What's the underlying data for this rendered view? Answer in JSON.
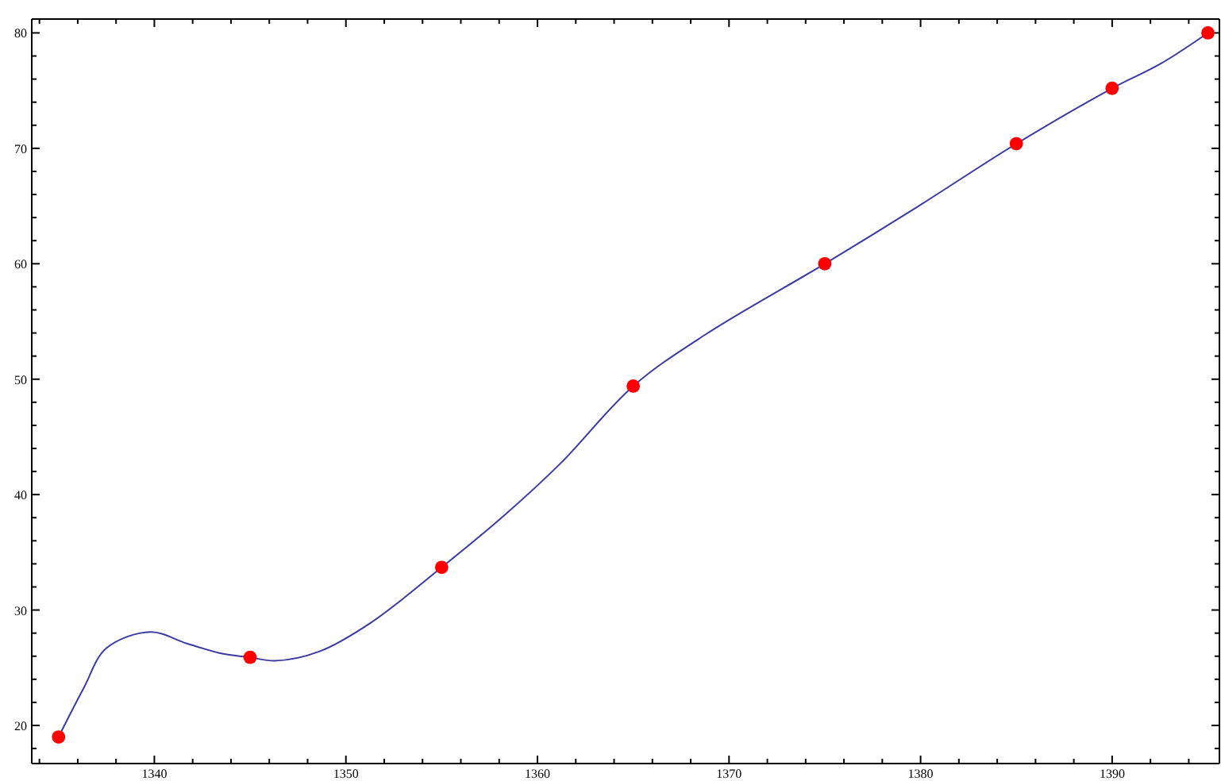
{
  "chart_data": {
    "type": "line",
    "xlim": [
      1333.6,
      1395.6
    ],
    "ylim": [
      16.7,
      81.2
    ],
    "xticks": [
      {
        "value": 1334,
        "label": null
      },
      {
        "value": 1336,
        "label": null
      },
      {
        "value": 1338,
        "label": null
      },
      1340,
      {
        "value": 1342,
        "label": null
      },
      {
        "value": 1344,
        "label": null
      },
      {
        "value": 1346,
        "label": null
      },
      {
        "value": 1348,
        "label": null
      },
      1350,
      {
        "value": 1352,
        "label": null
      },
      {
        "value": 1354,
        "label": null
      },
      {
        "value": 1356,
        "label": null
      },
      {
        "value": 1358,
        "label": null
      },
      1360,
      {
        "value": 1362,
        "label": null
      },
      {
        "value": 1364,
        "label": null
      },
      {
        "value": 1366,
        "label": null
      },
      {
        "value": 1368,
        "label": null
      },
      1370,
      {
        "value": 1372,
        "label": null
      },
      {
        "value": 1374,
        "label": null
      },
      {
        "value": 1376,
        "label": null
      },
      {
        "value": 1378,
        "label": null
      },
      1380,
      {
        "value": 1382,
        "label": null
      },
      {
        "value": 1384,
        "label": null
      },
      {
        "value": 1386,
        "label": null
      },
      {
        "value": 1388,
        "label": null
      },
      1390,
      {
        "value": 1392,
        "label": null
      },
      {
        "value": 1394,
        "label": null
      }
    ],
    "yticks": [
      {
        "value": 18,
        "label": null
      },
      20,
      {
        "value": 22,
        "label": null
      },
      {
        "value": 24,
        "label": null
      },
      {
        "value": 26,
        "label": null
      },
      {
        "value": 28,
        "label": null
      },
      30,
      {
        "value": 32,
        "label": null
      },
      {
        "value": 34,
        "label": null
      },
      {
        "value": 36,
        "label": null
      },
      {
        "value": 38,
        "label": null
      },
      40,
      {
        "value": 42,
        "label": null
      },
      {
        "value": 44,
        "label": null
      },
      {
        "value": 46,
        "label": null
      },
      {
        "value": 48,
        "label": null
      },
      50,
      {
        "value": 52,
        "label": null
      },
      {
        "value": 54,
        "label": null
      },
      {
        "value": 56,
        "label": null
      },
      {
        "value": 58,
        "label": null
      },
      60,
      {
        "value": 62,
        "label": null
      },
      {
        "value": 64,
        "label": null
      },
      {
        "value": 66,
        "label": null
      },
      {
        "value": 68,
        "label": null
      },
      70,
      {
        "value": 72,
        "label": null
      },
      {
        "value": 74,
        "label": null
      },
      {
        "value": 76,
        "label": null
      },
      {
        "value": 78,
        "label": null
      },
      80
    ],
    "grid": false,
    "series": [
      {
        "color": "#3a3aa0",
        "marker": "none",
        "line_style": "solid",
        "x": [
          1335,
          1336.3,
          1337.5,
          1339.8,
          1341.7,
          1343.6,
          1345,
          1346.3,
          1348.6,
          1351.3,
          1355,
          1358.2,
          1361.2,
          1365,
          1368.8,
          1375,
          1379.8,
          1385,
          1390,
          1392.5,
          1395
        ],
        "values": [
          19,
          23.2,
          26.7,
          28.1,
          27.1,
          26.2,
          25.9,
          25.6,
          26.4,
          28.9,
          33.7,
          38.1,
          42.7,
          49.4,
          53.9,
          60,
          64.9,
          70.4,
          75.2,
          77.3,
          80
        ]
      },
      {
        "type": "scatter",
        "color": "#ff0000",
        "marker": "circle",
        "x": [
          1335,
          1345,
          1355,
          1365,
          1375,
          1385,
          1390,
          1395
        ],
        "values": [
          19,
          25.9,
          33.7,
          49.4,
          60,
          70.4,
          75.2,
          80
        ]
      }
    ]
  }
}
